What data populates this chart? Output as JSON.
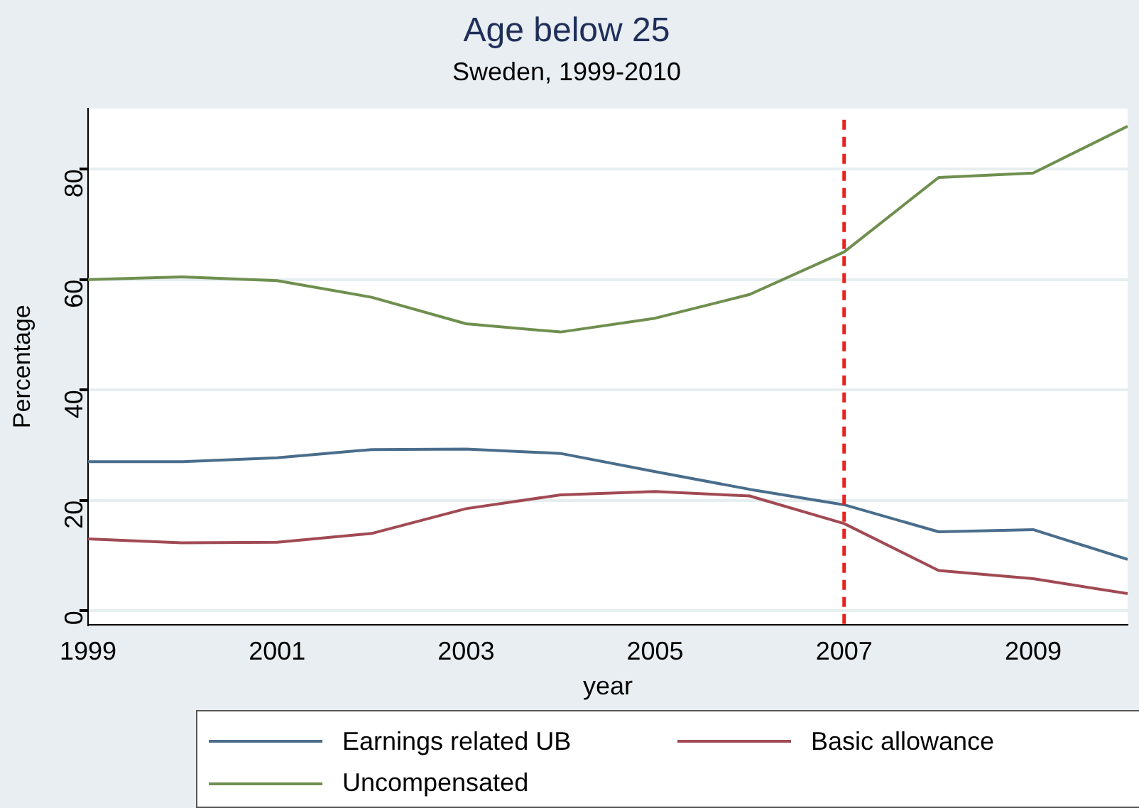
{
  "chart_data": {
    "type": "line",
    "title": "Age below 25",
    "subtitle": "Sweden, 1999-2010",
    "xlabel": "year",
    "ylabel": "Percentage",
    "x": [
      1999,
      2000,
      2001,
      2002,
      2003,
      2004,
      2005,
      2006,
      2007,
      2008,
      2009,
      2010
    ],
    "series": [
      {
        "name": "Earnings related UB",
        "color": "#4a6d8c",
        "values": [
          27,
          27,
          27.7,
          29.2,
          29.3,
          28.5,
          25.2,
          22,
          19.2,
          14.3,
          14.7,
          9.3
        ]
      },
      {
        "name": "Basic allowance",
        "color": "#a14a54",
        "values": [
          13,
          12.3,
          12.4,
          14,
          18.5,
          21,
          21.6,
          20.8,
          15.8,
          7.3,
          5.8,
          3.1
        ]
      },
      {
        "name": "Uncompensated",
        "color": "#6f8f4f",
        "values": [
          60,
          60.5,
          59.8,
          56.8,
          52,
          50.5,
          53,
          57.3,
          65,
          78.5,
          79.3,
          87.8
        ]
      }
    ],
    "xlim": [
      1999,
      2010
    ],
    "xticks": [
      1999,
      2001,
      2003,
      2005,
      2007,
      2009
    ],
    "ylim": [
      -2.5,
      91
    ],
    "yticks": [
      0,
      20,
      40,
      60,
      80
    ],
    "ref_lines": [
      {
        "axis": "x",
        "value": 2007,
        "color": "#e8231f",
        "line_style": "dashed"
      }
    ],
    "grid": "y",
    "legend": "bottom",
    "marker": "none",
    "line_style": "solid"
  }
}
